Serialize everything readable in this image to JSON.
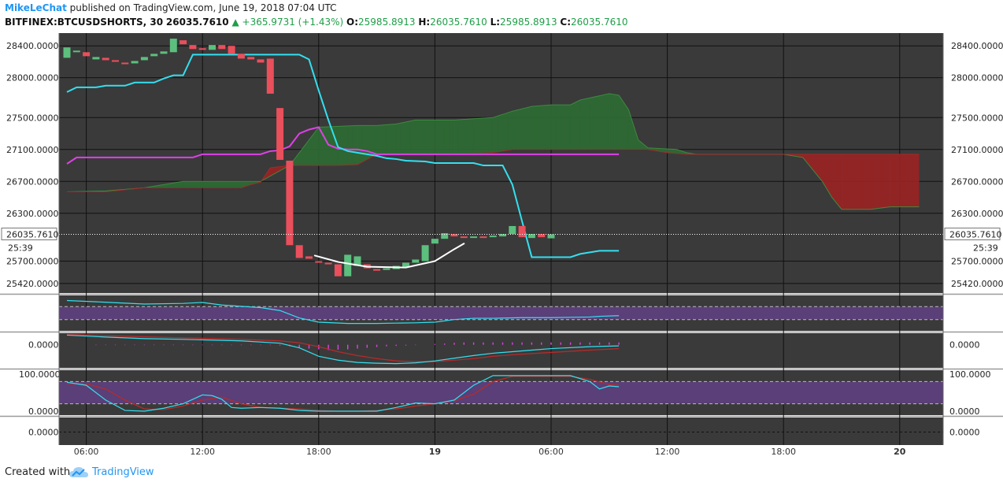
{
  "header": {
    "author": "MikeLeChat",
    "published_text": "published on TradingView.com, June 19, 2018 07:04 UTC",
    "symbol": "BITFINEX:BTCUSDSHORTS, 30",
    "last": "26035.7610",
    "change_arrow": "▲",
    "change": "+365.9731 (+1.43%)",
    "o_label": "O:",
    "o_value": "25985.8913",
    "h_label": "H:",
    "h_value": "26035.7610",
    "l_label": "L:",
    "l_value": "25985.8913",
    "c_label": "C:",
    "c_value": "26035.7610"
  },
  "footer": {
    "created_with": "Created with",
    "brand": "TradingView",
    "logo_icon": "tradingview-cloud-icon"
  },
  "colors": {
    "background": "#3a3a3a",
    "candle_up": "#5cbf7e",
    "candle_down": "#ea4f5c",
    "cyan": "#33e0f0",
    "magenta": "#e040e8",
    "cloud_green": "#2d6b34",
    "cloud_red": "#9b2424",
    "band_purple": "#5a3f78",
    "dark_red": "#b82a2a",
    "curve_white": "#ffffff"
  },
  "chart_data": {
    "type": "candlestick",
    "y_ticks_main": [
      "28400.0000",
      "28000.0000",
      "27500.0000",
      "27100.0000",
      "26700.0000",
      "26300.0000",
      "25700.0000",
      "25420.0000"
    ],
    "ylim_main": [
      25300,
      28560
    ],
    "last_price_label": "26035.7610",
    "countdown_label": "25:39",
    "x_ticks": [
      "06:00",
      "12:00",
      "18:00",
      "19",
      "06:00",
      "12:00",
      "18:00",
      "20"
    ],
    "x_tick_bold": [
      false,
      false,
      false,
      true,
      false,
      false,
      false,
      true
    ],
    "x_tick_index": [
      2,
      14,
      26,
      38,
      50,
      62,
      74,
      86
    ],
    "candles": [
      {
        "o": 28250,
        "c": 28380
      },
      {
        "o": 28320,
        "c": 28340
      },
      {
        "o": 28320,
        "c": 28270
      },
      {
        "o": 28230,
        "c": 28260
      },
      {
        "o": 28250,
        "c": 28220
      },
      {
        "o": 28220,
        "c": 28200
      },
      {
        "o": 28190,
        "c": 28170
      },
      {
        "o": 28180,
        "c": 28210
      },
      {
        "o": 28220,
        "c": 28260
      },
      {
        "o": 28270,
        "c": 28300
      },
      {
        "o": 28300,
        "c": 28330
      },
      {
        "o": 28320,
        "c": 28490
      },
      {
        "o": 28470,
        "c": 28420
      },
      {
        "o": 28410,
        "c": 28360
      },
      {
        "o": 28370,
        "c": 28350
      },
      {
        "o": 28350,
        "c": 28410
      },
      {
        "o": 28410,
        "c": 28360
      },
      {
        "o": 28400,
        "c": 28300
      },
      {
        "o": 28300,
        "c": 28240
      },
      {
        "o": 28260,
        "c": 28230
      },
      {
        "o": 28230,
        "c": 28190
      },
      {
        "o": 28240,
        "c": 27800
      },
      {
        "o": 27620,
        "c": 26970
      },
      {
        "o": 26960,
        "c": 25900
      },
      {
        "o": 25900,
        "c": 25740
      },
      {
        "o": 25760,
        "c": 25730
      },
      {
        "o": 25700,
        "c": 25680
      },
      {
        "o": 25680,
        "c": 25660
      },
      {
        "o": 25660,
        "c": 25510
      },
      {
        "o": 25510,
        "c": 25780
      },
      {
        "o": 25640,
        "c": 25760
      },
      {
        "o": 25660,
        "c": 25610
      },
      {
        "o": 25600,
        "c": 25580
      },
      {
        "o": 25590,
        "c": 25610
      },
      {
        "o": 25600,
        "c": 25640
      },
      {
        "o": 25620,
        "c": 25680
      },
      {
        "o": 25680,
        "c": 25720
      },
      {
        "o": 25700,
        "c": 25900
      },
      {
        "o": 25920,
        "c": 25980
      },
      {
        "o": 25980,
        "c": 26050
      },
      {
        "o": 26040,
        "c": 26010
      },
      {
        "o": 26010,
        "c": 26000
      },
      {
        "o": 26000,
        "c": 26010
      },
      {
        "o": 26010,
        "c": 26000
      },
      {
        "o": 26000,
        "c": 26020
      },
      {
        "o": 26010,
        "c": 26040
      },
      {
        "o": 26040,
        "c": 26140
      },
      {
        "o": 26140,
        "c": 26000
      },
      {
        "o": 25990,
        "c": 26040
      },
      {
        "o": 26040,
        "c": 26000
      },
      {
        "o": 25986,
        "c": 26036
      }
    ],
    "conversion_line": [
      [
        0,
        27820
      ],
      [
        1,
        27880
      ],
      [
        3,
        27880
      ],
      [
        4,
        27900
      ],
      [
        6,
        27900
      ],
      [
        7,
        27940
      ],
      [
        9,
        27940
      ],
      [
        10,
        27990
      ],
      [
        11,
        28030
      ],
      [
        12,
        28030
      ],
      [
        13,
        28290
      ],
      [
        24,
        28290
      ],
      [
        25,
        28230
      ],
      [
        26,
        27840
      ],
      [
        27,
        27470
      ],
      [
        28,
        27130
      ],
      [
        29,
        27080
      ],
      [
        30,
        27060
      ],
      [
        31,
        27040
      ],
      [
        32,
        27020
      ],
      [
        33,
        26990
      ],
      [
        34,
        26980
      ],
      [
        35,
        26960
      ],
      [
        37,
        26950
      ],
      [
        38,
        26930
      ],
      [
        42,
        26930
      ],
      [
        43,
        26900
      ],
      [
        45,
        26900
      ],
      [
        46,
        26660
      ],
      [
        47,
        26200
      ],
      [
        48,
        25750
      ],
      [
        52,
        25750
      ],
      [
        53,
        25790
      ],
      [
        54,
        25810
      ],
      [
        55,
        25830
      ],
      [
        57,
        25830
      ]
    ],
    "base_line": [
      [
        0,
        26920
      ],
      [
        1,
        27000
      ],
      [
        13,
        27000
      ],
      [
        14,
        27040
      ],
      [
        20,
        27040
      ],
      [
        21,
        27080
      ],
      [
        22,
        27090
      ],
      [
        23,
        27140
      ],
      [
        24,
        27300
      ],
      [
        25,
        27350
      ],
      [
        26,
        27380
      ],
      [
        27,
        27160
      ],
      [
        28,
        27110
      ],
      [
        29,
        27100
      ],
      [
        30,
        27100
      ],
      [
        31,
        27080
      ],
      [
        32,
        27040
      ],
      [
        57,
        27040
      ]
    ],
    "cloud_span_a": [
      [
        0,
        26570
      ],
      [
        4,
        26580
      ],
      [
        8,
        26620
      ],
      [
        12,
        26700
      ],
      [
        16,
        26700
      ],
      [
        20,
        26700
      ],
      [
        23,
        26900
      ],
      [
        26,
        27380
      ],
      [
        30,
        27400
      ],
      [
        32,
        27400
      ],
      [
        34,
        27420
      ],
      [
        36,
        27470
      ],
      [
        40,
        27470
      ],
      [
        44,
        27500
      ],
      [
        46,
        27580
      ],
      [
        48,
        27640
      ],
      [
        50,
        27660
      ],
      [
        52,
        27660
      ],
      [
        53,
        27720
      ],
      [
        56,
        27800
      ],
      [
        57,
        27780
      ],
      [
        58,
        27600
      ],
      [
        59,
        27220
      ],
      [
        60,
        27120
      ],
      [
        63,
        27100
      ],
      [
        64,
        27060
      ],
      [
        65,
        27040
      ],
      [
        68,
        27040
      ],
      [
        70,
        27040
      ],
      [
        72,
        27040
      ],
      [
        74,
        27040
      ],
      [
        76,
        27000
      ],
      [
        78,
        26700
      ],
      [
        79,
        26500
      ],
      [
        80,
        26350
      ],
      [
        83,
        26350
      ],
      [
        85,
        26380
      ],
      [
        88,
        26380
      ]
    ],
    "cloud_span_b": [
      [
        0,
        26570
      ],
      [
        4,
        26570
      ],
      [
        8,
        26620
      ],
      [
        12,
        26620
      ],
      [
        16,
        26620
      ],
      [
        18,
        26620
      ],
      [
        19,
        26660
      ],
      [
        20,
        26690
      ],
      [
        21,
        26870
      ],
      [
        23,
        26900
      ],
      [
        26,
        26900
      ],
      [
        28,
        26900
      ],
      [
        30,
        26910
      ],
      [
        32,
        27040
      ],
      [
        34,
        27040
      ],
      [
        36,
        27040
      ],
      [
        40,
        27040
      ],
      [
        44,
        27060
      ],
      [
        46,
        27100
      ],
      [
        48,
        27100
      ],
      [
        52,
        27100
      ],
      [
        56,
        27100
      ],
      [
        58,
        27100
      ],
      [
        60,
        27100
      ],
      [
        62,
        27060
      ],
      [
        64,
        27040
      ],
      [
        66,
        27040
      ],
      [
        68,
        27040
      ],
      [
        70,
        27040
      ],
      [
        72,
        27040
      ],
      [
        74,
        27040
      ],
      [
        76,
        27040
      ],
      [
        78,
        27040
      ],
      [
        80,
        27040
      ],
      [
        82,
        27040
      ],
      [
        84,
        27040
      ],
      [
        86,
        27040
      ],
      [
        88,
        27040
      ]
    ],
    "cup_curve": [
      [
        25.6,
        25770
      ],
      [
        28,
        25690
      ],
      [
        31,
        25630
      ],
      [
        35,
        25620
      ],
      [
        38,
        25700
      ],
      [
        40,
        25850
      ],
      [
        41,
        25920
      ]
    ],
    "rsi_panel": {
      "band": [
        30,
        70
      ],
      "ylim": [
        0,
        100
      ],
      "line": [
        [
          0,
          89
        ],
        [
          3,
          85
        ],
        [
          8,
          78
        ],
        [
          12,
          80
        ],
        [
          14,
          83
        ],
        [
          16,
          75
        ],
        [
          20,
          67
        ],
        [
          22,
          58
        ],
        [
          24,
          35
        ],
        [
          26,
          22
        ],
        [
          29,
          18
        ],
        [
          32,
          18
        ],
        [
          34,
          19
        ],
        [
          36,
          20
        ],
        [
          38,
          22
        ],
        [
          40,
          30
        ],
        [
          42,
          34
        ],
        [
          44,
          34
        ],
        [
          47,
          36
        ],
        [
          50,
          36
        ],
        [
          52,
          37
        ],
        [
          54,
          38
        ],
        [
          55,
          40
        ],
        [
          57,
          42
        ]
      ]
    },
    "macd_panel": {
      "zero_label": "0.0000",
      "ylim": [
        -60,
        30
      ],
      "macd_line": [
        [
          0,
          25
        ],
        [
          4,
          20
        ],
        [
          8,
          16
        ],
        [
          12,
          14
        ],
        [
          18,
          10
        ],
        [
          22,
          4
        ],
        [
          24,
          -8
        ],
        [
          26,
          -30
        ],
        [
          28,
          -40
        ],
        [
          30,
          -46
        ],
        [
          32,
          -48
        ],
        [
          34,
          -49
        ],
        [
          36,
          -47
        ],
        [
          38,
          -42
        ],
        [
          40,
          -35
        ],
        [
          42,
          -28
        ],
        [
          44,
          -22
        ],
        [
          46,
          -18
        ],
        [
          48,
          -14
        ],
        [
          50,
          -10
        ],
        [
          54,
          -5
        ],
        [
          57,
          -3
        ]
      ],
      "signal_line": [
        [
          0,
          27
        ],
        [
          6,
          22
        ],
        [
          12,
          18
        ],
        [
          18,
          14
        ],
        [
          22,
          10
        ],
        [
          24,
          5
        ],
        [
          26,
          -5
        ],
        [
          28,
          -18
        ],
        [
          30,
          -28
        ],
        [
          32,
          -36
        ],
        [
          34,
          -42
        ],
        [
          36,
          -44
        ],
        [
          38,
          -44
        ],
        [
          40,
          -40
        ],
        [
          42,
          -36
        ],
        [
          44,
          -30
        ],
        [
          46,
          -26
        ],
        [
          50,
          -20
        ],
        [
          54,
          -14
        ],
        [
          57,
          -10
        ]
      ],
      "histogram": [
        [
          3,
          -1
        ],
        [
          4,
          -1
        ],
        [
          5,
          -1
        ],
        [
          6,
          -1
        ],
        [
          7,
          -1
        ],
        [
          8,
          -1
        ],
        [
          9,
          -1
        ],
        [
          10,
          -1
        ],
        [
          11,
          -1
        ],
        [
          12,
          -1
        ],
        [
          13,
          -1
        ],
        [
          14,
          -1
        ],
        [
          15,
          -1
        ],
        [
          16,
          -1
        ],
        [
          17,
          -1
        ],
        [
          18,
          -1
        ],
        [
          19,
          -1
        ],
        [
          20,
          -1
        ],
        [
          21,
          -1
        ],
        [
          22,
          -2
        ],
        [
          23,
          -4
        ],
        [
          24,
          -8
        ],
        [
          25,
          -10
        ],
        [
          26,
          -12
        ],
        [
          27,
          -14
        ],
        [
          28,
          -13
        ],
        [
          29,
          -12
        ],
        [
          30,
          -10
        ],
        [
          31,
          -8
        ],
        [
          32,
          -6
        ],
        [
          33,
          -4
        ],
        [
          34,
          -3
        ],
        [
          35,
          -2
        ],
        [
          36,
          -1
        ],
        [
          38,
          2
        ],
        [
          39,
          3
        ],
        [
          40,
          5
        ],
        [
          41,
          6
        ],
        [
          42,
          6
        ],
        [
          43,
          6
        ],
        [
          44,
          6
        ],
        [
          45,
          6
        ],
        [
          46,
          6
        ],
        [
          47,
          6
        ],
        [
          48,
          6
        ],
        [
          49,
          6
        ],
        [
          50,
          6
        ],
        [
          51,
          6
        ],
        [
          52,
          6
        ],
        [
          53,
          6
        ],
        [
          54,
          6
        ],
        [
          55,
          6
        ],
        [
          56,
          6
        ],
        [
          57,
          6
        ]
      ]
    },
    "stoch_panel": {
      "ylim": [
        0,
        100
      ],
      "tick_labels": [
        "100.0000",
        "0.0000"
      ],
      "band": [
        20,
        80
      ],
      "k_line": [
        [
          0,
          78
        ],
        [
          2,
          70
        ],
        [
          4,
          30
        ],
        [
          6,
          2
        ],
        [
          8,
          0
        ],
        [
          10,
          8
        ],
        [
          12,
          20
        ],
        [
          14,
          44
        ],
        [
          15,
          42
        ],
        [
          16,
          32
        ],
        [
          17,
          10
        ],
        [
          18,
          8
        ],
        [
          20,
          10
        ],
        [
          22,
          8
        ],
        [
          24,
          2
        ],
        [
          26,
          0
        ],
        [
          30,
          0
        ],
        [
          32,
          0
        ],
        [
          34,
          10
        ],
        [
          36,
          22
        ],
        [
          38,
          20
        ],
        [
          40,
          30
        ],
        [
          42,
          70
        ],
        [
          44,
          96
        ],
        [
          46,
          96
        ],
        [
          48,
          96
        ],
        [
          50,
          96
        ],
        [
          52,
          96
        ],
        [
          54,
          80
        ],
        [
          55,
          60
        ],
        [
          56,
          68
        ],
        [
          57,
          66
        ]
      ],
      "d_line": [
        [
          0,
          74
        ],
        [
          2,
          74
        ],
        [
          4,
          60
        ],
        [
          6,
          30
        ],
        [
          8,
          6
        ],
        [
          10,
          4
        ],
        [
          12,
          14
        ],
        [
          14,
          30
        ],
        [
          16,
          38
        ],
        [
          18,
          20
        ],
        [
          20,
          10
        ],
        [
          22,
          8
        ],
        [
          24,
          6
        ],
        [
          26,
          2
        ],
        [
          28,
          0
        ],
        [
          30,
          0
        ],
        [
          32,
          2
        ],
        [
          34,
          6
        ],
        [
          36,
          14
        ],
        [
          38,
          20
        ],
        [
          40,
          28
        ],
        [
          42,
          46
        ],
        [
          44,
          80
        ],
        [
          46,
          94
        ],
        [
          48,
          94
        ],
        [
          50,
          94
        ],
        [
          52,
          94
        ],
        [
          54,
          86
        ],
        [
          56,
          72
        ],
        [
          57,
          70
        ]
      ]
    },
    "panel5": {
      "zero_label": "0.0000"
    }
  }
}
